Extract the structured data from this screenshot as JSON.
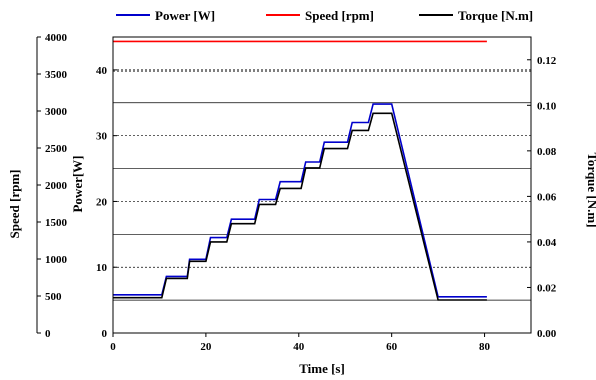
{
  "chart_data": {
    "type": "line",
    "xlabel": "Time [s]",
    "ylabel_power": "Power[W]",
    "ylabel_speed": "Speed [rpm]",
    "ylabel_torque": "Torque [N.m]",
    "axes": {
      "x": {
        "range": [
          0,
          90
        ],
        "ticks": [
          0,
          20,
          40,
          60,
          80
        ]
      },
      "power": {
        "range": [
          0,
          45
        ],
        "ticks": [
          0,
          10,
          20,
          30,
          40
        ]
      },
      "speed": {
        "range": [
          0,
          4000
        ],
        "ticks": [
          0,
          500,
          1000,
          1500,
          2000,
          2500,
          3000,
          3500,
          4000
        ]
      },
      "torque": {
        "range": [
          0.0,
          0.13
        ],
        "ticks": [
          0.0,
          0.02,
          0.04,
          0.06,
          0.08,
          0.1,
          0.12
        ],
        "tick_decimals": 2
      }
    },
    "grid": true,
    "legend_position": "top",
    "series": [
      {
        "name": "Power [W]",
        "axis": "power",
        "color": "#0000cc",
        "x": [
          0,
          10.5,
          11.5,
          16,
          16.5,
          20,
          21,
          24.5,
          25.5,
          30.5,
          31.5,
          35,
          36,
          40.5,
          41.5,
          44.5,
          45.5,
          50.5,
          51.5,
          55,
          56,
          60,
          70,
          80.5
        ],
        "y": [
          5.8,
          5.8,
          8.6,
          8.6,
          11.2,
          11.2,
          14.5,
          14.5,
          17.3,
          17.3,
          20.3,
          20.3,
          23.0,
          23.0,
          26.0,
          26.0,
          29.0,
          29.0,
          32.0,
          32.0,
          34.8,
          34.8,
          5.5,
          5.5
        ]
      },
      {
        "name": "Speed [rpm]",
        "axis": "speed",
        "color": "#ff0000",
        "x": [
          0,
          80.5
        ],
        "y": [
          3940,
          3940
        ]
      },
      {
        "name": "Torque [N.m]",
        "axis": "torque",
        "color": "#000000",
        "x": [
          0,
          10.5,
          11.5,
          16,
          16.5,
          20,
          21,
          24.5,
          25.5,
          30.5,
          31.5,
          35,
          36,
          40.5,
          41.5,
          44.5,
          45.5,
          50.5,
          51.5,
          55,
          56,
          60,
          70,
          80.5
        ],
        "y": [
          0.0155,
          0.0155,
          0.024,
          0.024,
          0.0315,
          0.0315,
          0.04,
          0.04,
          0.048,
          0.048,
          0.0565,
          0.0565,
          0.0635,
          0.0635,
          0.0725,
          0.0725,
          0.081,
          0.081,
          0.089,
          0.089,
          0.0965,
          0.0965,
          0.0145,
          0.0145
        ]
      }
    ],
    "reference_lines": {
      "power": [
        5,
        10,
        15,
        20,
        25,
        30,
        35,
        40
      ],
      "torque": [
        0.115
      ]
    }
  }
}
